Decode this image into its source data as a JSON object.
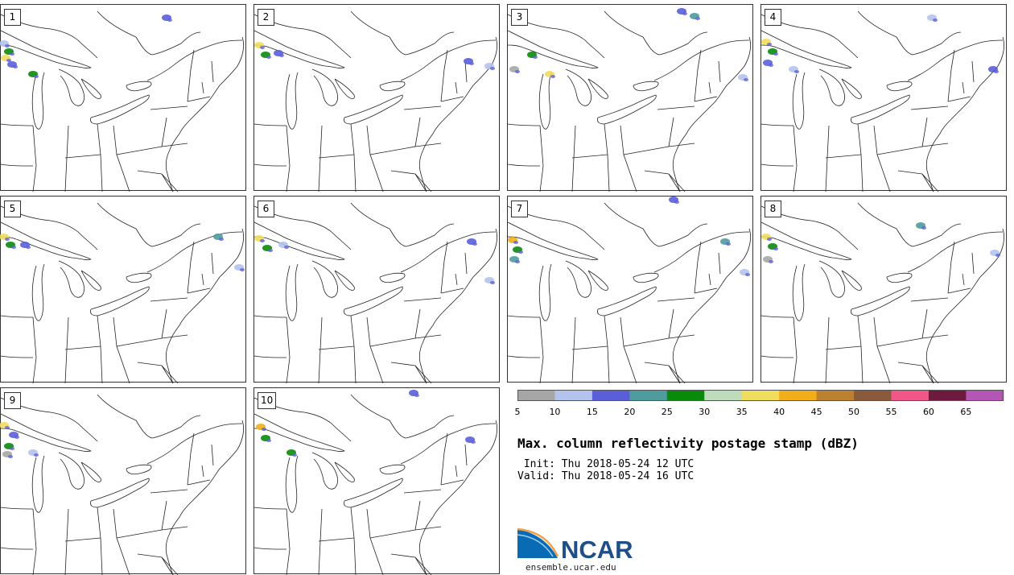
{
  "title": "Max. column reflectivity postage stamp (dBZ)",
  "init_line": " Init: Thu 2018-05-24 12 UTC",
  "valid_line": "Valid: Thu 2018-05-24 16 UTC",
  "logo_text": "NCAR",
  "logo_url": "ensemble.ucar.edu",
  "members": [
    "1",
    "2",
    "3",
    "4",
    "5",
    "6",
    "7",
    "8",
    "9",
    "10"
  ],
  "colorbar": {
    "ticks": [
      "5",
      "10",
      "15",
      "20",
      "25",
      "30",
      "35",
      "40",
      "45",
      "50",
      "55",
      "60",
      "65"
    ],
    "colors": [
      "#a6a6a6",
      "#b4c2ee",
      "#5a5fd9",
      "#4f9c9f",
      "#0a8a0a",
      "#bcdcbc",
      "#f0dd60",
      "#f1ae1a",
      "#bb8030",
      "#8a5a3d",
      "#f05687",
      "#6e1a3e",
      "#b456b4"
    ]
  }
}
